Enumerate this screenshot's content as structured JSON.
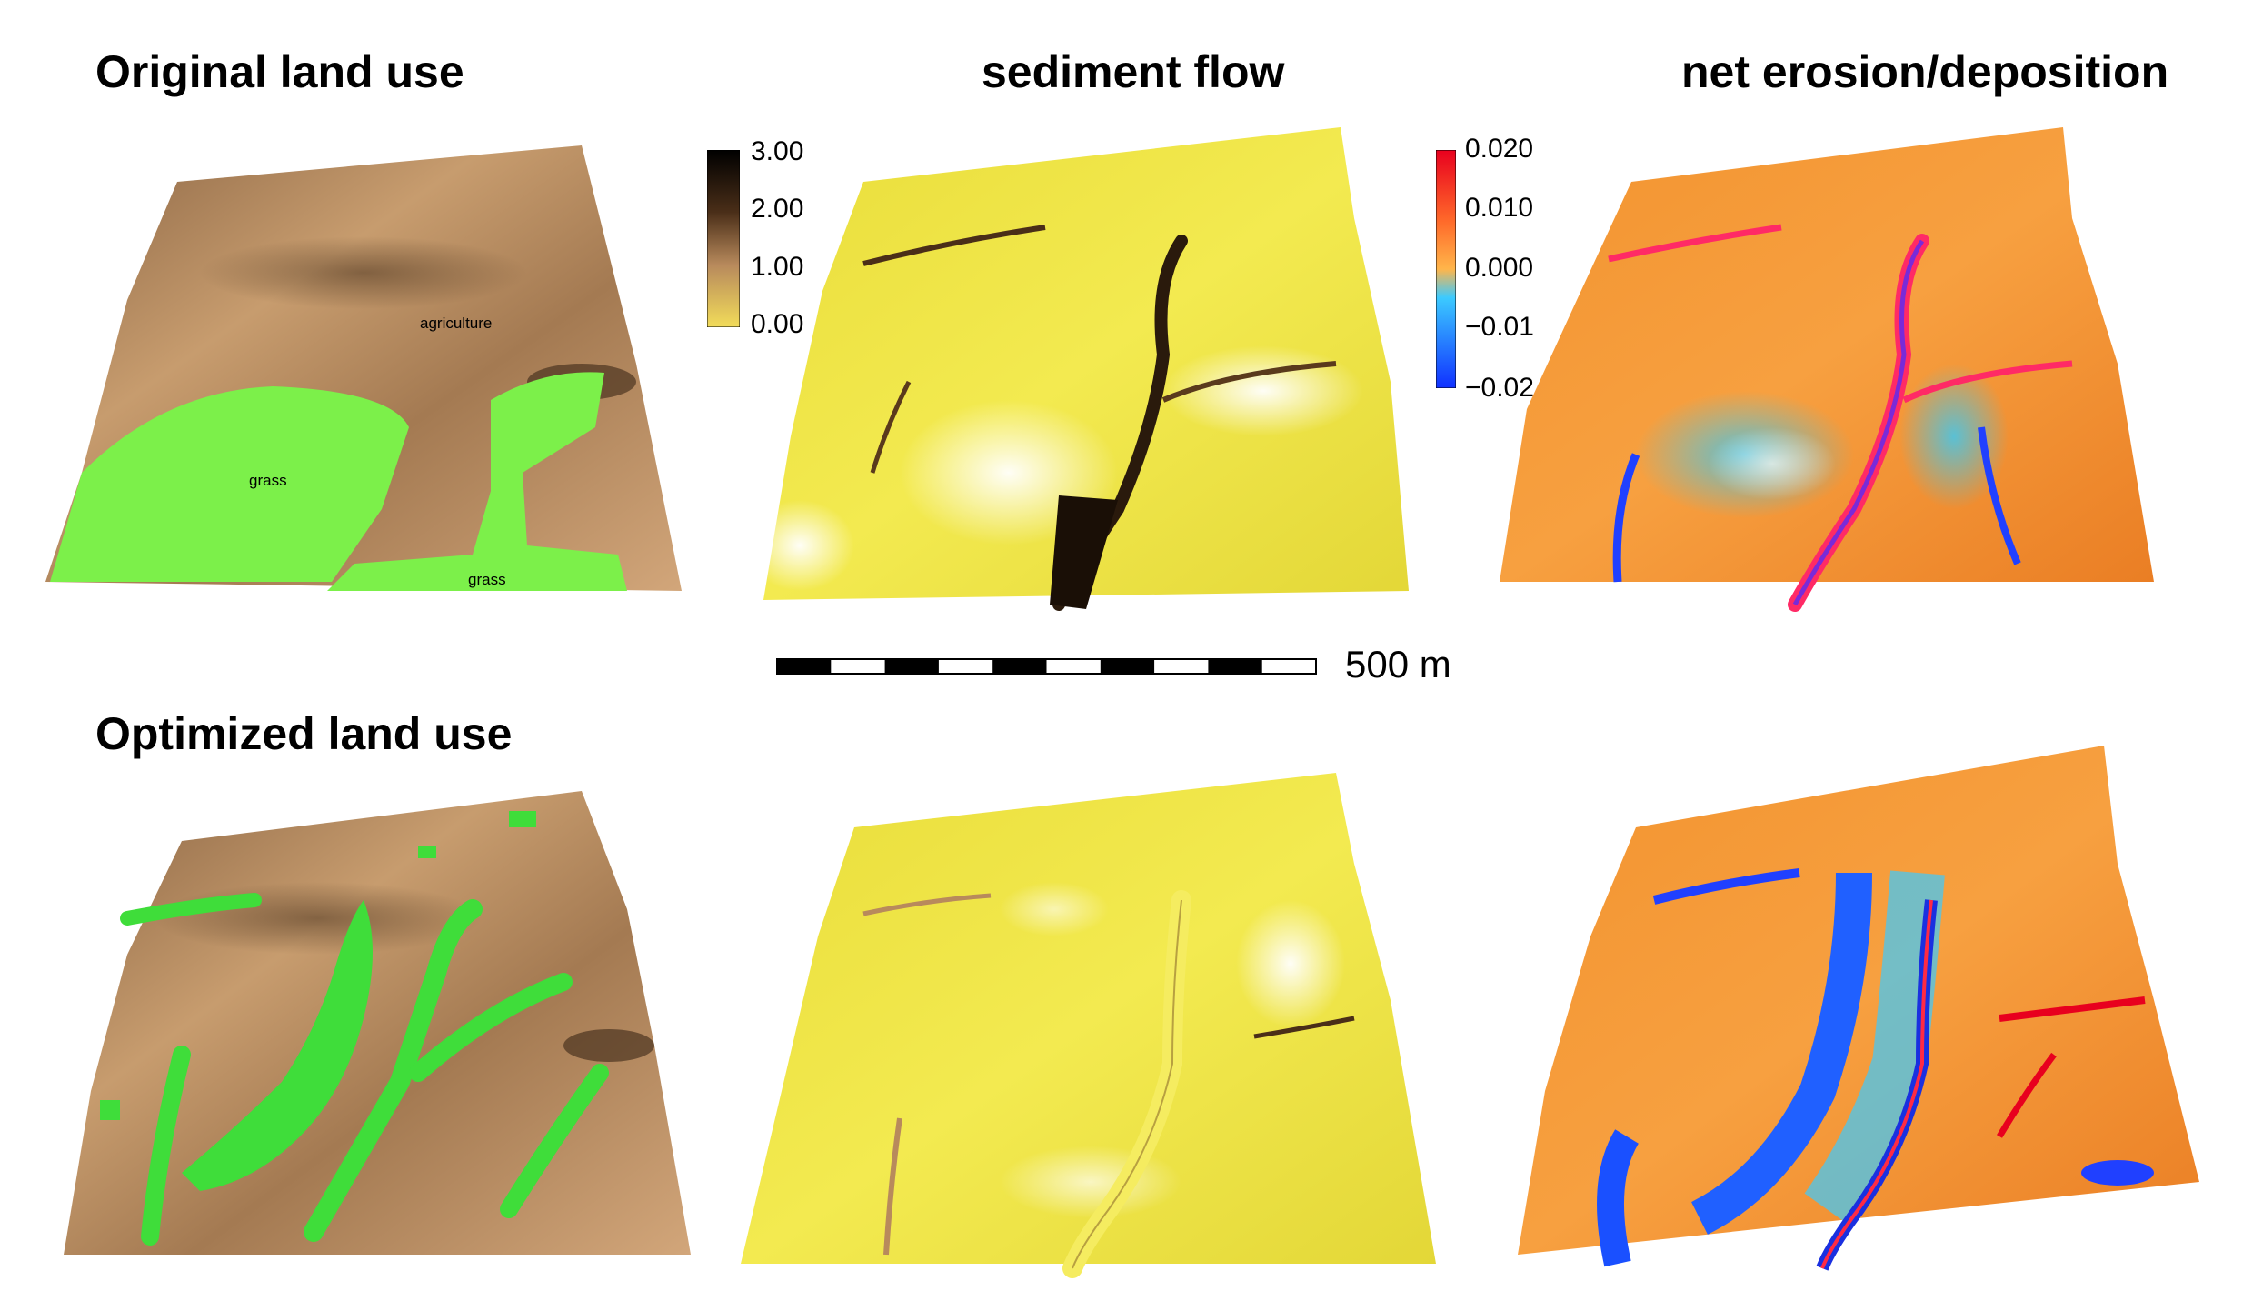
{
  "titles": {
    "original": "Original land use",
    "flow": "sediment flow",
    "erosion": "net erosion/deposition",
    "optimized": "Optimized land use"
  },
  "map_labels": {
    "agriculture": "agriculture",
    "grass_left": "grass",
    "grass_bottom": "grass"
  },
  "flow_legend": {
    "ticks": [
      "3.00",
      "2.00",
      "1.00",
      "0.00"
    ],
    "colors": [
      "#000000",
      "#4a2e18",
      "#b88a5c",
      "#f2dc5a"
    ]
  },
  "erosion_legend": {
    "ticks": [
      "0.020",
      "0.010",
      "0.000",
      "−0.01",
      "−0.02"
    ],
    "colors": [
      "#e8001e",
      "#ff9a2a",
      "#3ccaff",
      "#1030ff"
    ]
  },
  "scale_bar": {
    "label": "500 m",
    "segments": 10
  },
  "colors": {
    "agriculture": "#b98b5e",
    "grass": "#7cf04a",
    "flow_base": "#efe63e",
    "erosion_base": "#f08a2c"
  }
}
